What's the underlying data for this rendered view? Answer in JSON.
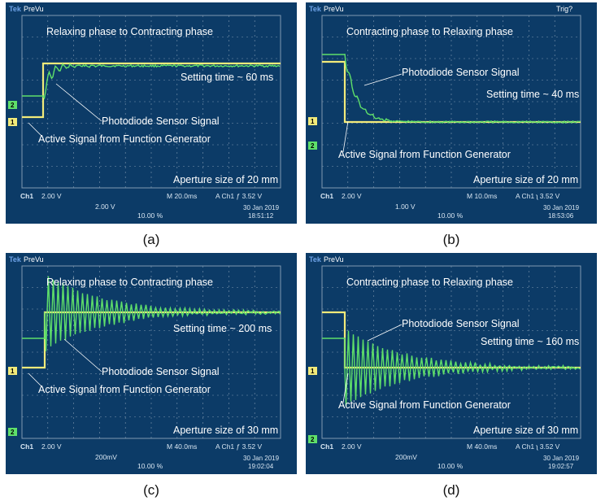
{
  "colors": {
    "bezel": "#0d0e12",
    "screen": "#0c3b67",
    "grid": "#7f98b0",
    "trace_yellow": "#f2ea7a",
    "trace_green": "#5fe06a",
    "text": "#ffffff",
    "status_text": "#d8e6f2"
  },
  "panels": [
    {
      "label": "(a)",
      "brand": "Tek",
      "mode": "PreVu",
      "trig_status": "",
      "title": "Relaxing phase to Contracting phase",
      "setting_time": "Setting time ~ 60 ms",
      "photodiode_label": "Photodiode Sensor Signal",
      "active_label": "Active Signal from Function Generator",
      "aperture": "Aperture size of 20 mm",
      "ch1_scale": "2.00 V",
      "ch2_scale": "2.00 V",
      "timebase": "M 20.0ms",
      "trigger": "A Ch1 ƒ 3.52 V",
      "percent": "10.00 %",
      "date": "30 Jan 2019",
      "time": "18:51:12",
      "ch1_marker": "1",
      "ch2_marker": "2",
      "transition": "rise",
      "settle": "small"
    },
    {
      "label": "(b)",
      "brand": "Tek",
      "mode": "PreVu",
      "trig_status": "Trig?",
      "title": "Contracting phase to Relaxing phase",
      "setting_time": "Setting time ~ 40 ms",
      "photodiode_label": "Photodiode Sensor Signal",
      "active_label": "Active Signal from Function Generator",
      "aperture": "Aperture size of 20 mm",
      "ch1_scale": "2.00 V",
      "ch2_scale": "1.00 V",
      "timebase": "M 10.0ms",
      "trigger": "A Ch1 ʅ 3.52 V",
      "percent": "10.00 %",
      "date": "30 Jan 2019",
      "time": "18:53:06",
      "ch1_marker": "1",
      "ch2_marker": "2",
      "transition": "fall",
      "settle": "small"
    },
    {
      "label": "(c)",
      "brand": "Tek",
      "mode": "PreVu",
      "trig_status": "",
      "title": "Relaxing phase to Contracting phase",
      "setting_time": "Setting time ~ 200 ms",
      "photodiode_label": "Photodiode Sensor Signal",
      "active_label": "Active Signal from Function Generator",
      "aperture": "Aperture size of 30 mm",
      "ch1_scale": "2.00 V",
      "ch2_scale": "200mV",
      "timebase": "M 40.0ms",
      "trigger": "A Ch1 ƒ 3.52 V",
      "percent": "10.00 %",
      "date": "30 Jan 2019",
      "time": "19:02:04",
      "ch1_marker": "1",
      "ch2_marker": "2",
      "transition": "rise",
      "settle": "large"
    },
    {
      "label": "(d)",
      "brand": "Tek",
      "mode": "PreVu",
      "trig_status": "",
      "title": "Contracting phase to Relaxing phase",
      "setting_time": "Setting time ~ 160 ms",
      "photodiode_label": "Photodiode Sensor Signal",
      "active_label": "Active Signal from Function Generator",
      "aperture": "Aperture size of 30 mm",
      "ch1_scale": "2.00 V",
      "ch2_scale": "200mV",
      "timebase": "M 40.0ms",
      "trigger": "A Ch1 ʅ 3.52 V",
      "percent": "10.00 %",
      "date": "30 Jan 2019",
      "time": "19:02:57",
      "ch1_marker": "1",
      "ch2_marker": "2",
      "transition": "fall",
      "settle": "large"
    }
  ]
}
